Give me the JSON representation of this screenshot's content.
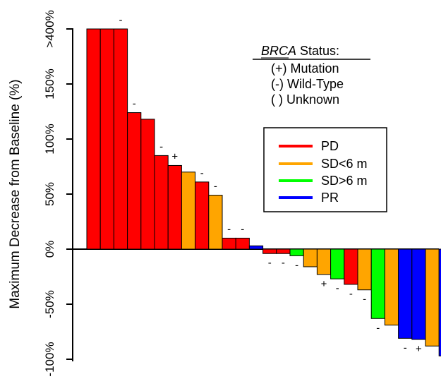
{
  "chart_data": {
    "type": "bar",
    "ylabel": "Maximum Decrease from Baseline (%)",
    "y_ticks": [
      ">400%",
      "150%",
      "100%",
      "50%",
      "0%",
      "-50%",
      "-100%"
    ],
    "y_tick_values": [
      200,
      150,
      100,
      50,
      0,
      -50,
      -100
    ],
    "colors": {
      "PD": "#ff0000",
      "SD<6 m": "#ffa500",
      "SD>6 m": "#00ff00",
      "PR": "#0000ff"
    },
    "values": [
      200,
      200,
      200,
      124,
      118,
      85,
      76,
      70,
      61,
      49,
      10,
      10,
      3,
      -4,
      -4,
      -6,
      -16,
      -23,
      -27,
      -32,
      -37,
      -63,
      -69,
      -81,
      -82,
      -88,
      -97
    ],
    "response": [
      "PD",
      "PD",
      "PD",
      "PD",
      "PD",
      "PD",
      "PD",
      "SD<6 m",
      "PD",
      "SD<6 m",
      "PD",
      "PD",
      "PR",
      "PD",
      "PD",
      "SD>6 m",
      "SD<6 m",
      "SD<6 m",
      "SD>6 m",
      "PD",
      "SD<6 m",
      "SD>6 m",
      "SD<6 m",
      "PR",
      "PR",
      "SD<6 m",
      "PR"
    ],
    "brca_marks": [
      "",
      "",
      "-",
      "-",
      "",
      "-",
      "+",
      "",
      "-",
      "-",
      "-",
      "-",
      "",
      "-",
      "-",
      "-",
      "",
      "+",
      "-",
      "-",
      "-",
      "-",
      "",
      "-",
      "+",
      "",
      "+"
    ],
    "legend": {
      "items": [
        {
          "label": "PD",
          "color": "#ff0000"
        },
        {
          "label": "SD<6 m",
          "color": "#ffa500"
        },
        {
          "label": "SD>6 m",
          "color": "#00ff00"
        },
        {
          "label": "PR",
          "color": "#0000ff"
        }
      ]
    },
    "status_key": {
      "title_italic": "BRCA",
      "title_rest": " Status:",
      "lines": [
        "(+) Mutation",
        "(-) Wild-Type",
        "( ) Unknown"
      ]
    }
  }
}
